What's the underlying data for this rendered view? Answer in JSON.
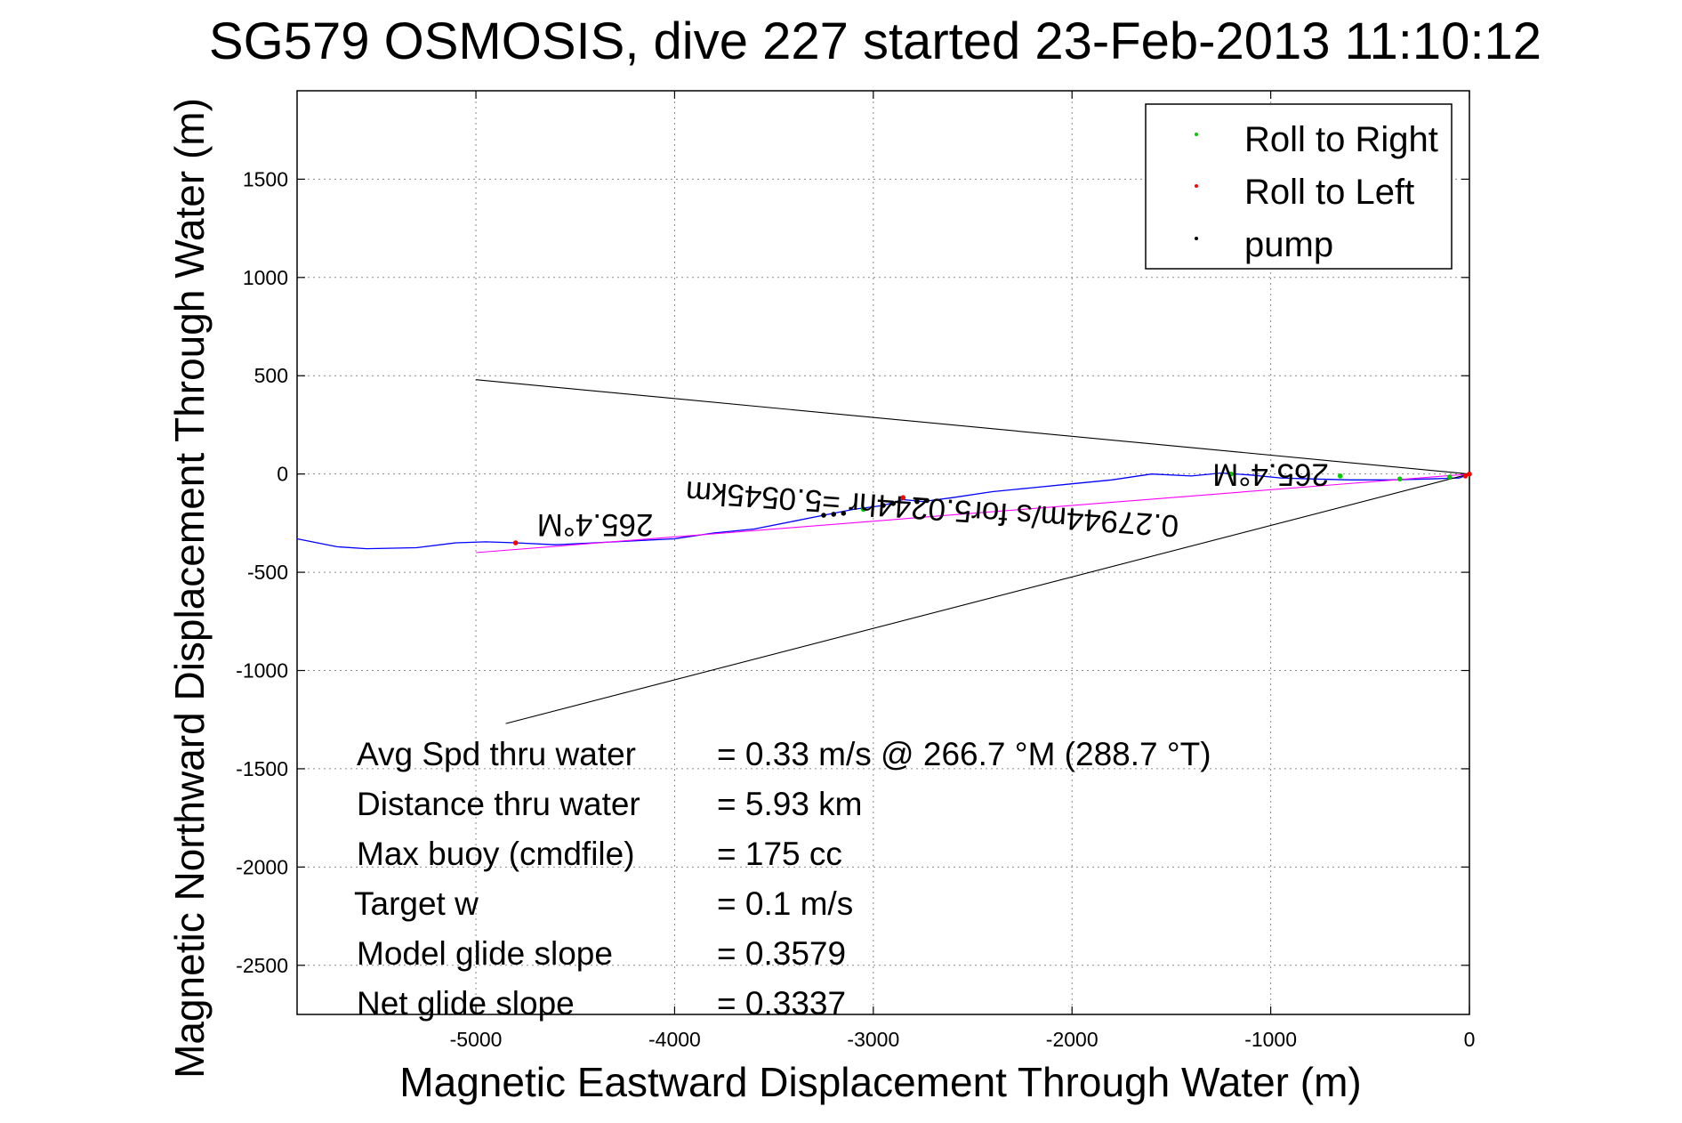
{
  "chart_data": {
    "type": "line",
    "title": "SG579 OSMOSIS, dive 227 started 23-Feb-2013 11:10:12",
    "xlabel": "Magnetic Eastward Displacement Through Water (m)",
    "ylabel": "Magnetic Northward Displacement Through Water (m)",
    "xlim": [
      -5900,
      0
    ],
    "ylim": [
      -2750,
      1950
    ],
    "xticks": [
      -5000,
      -4000,
      -3000,
      -2000,
      -1000,
      0
    ],
    "yticks": [
      -2500,
      -2000,
      -1500,
      -1000,
      -500,
      0,
      500,
      1000,
      1500
    ],
    "grid": true,
    "legend_position": "top-right",
    "legend": [
      {
        "label": "Roll to Right",
        "color": "#00cc00"
      },
      {
        "label": "Roll to Left",
        "color": "#ff0000"
      },
      {
        "label": "pump",
        "color": "#000000"
      }
    ],
    "series": [
      {
        "style": "track",
        "color": "#0000ff",
        "x": [
          -5900,
          -5700,
          -5550,
          -5300,
          -5100,
          -4950,
          -4800,
          -4600,
          -4400,
          -4200,
          -4000,
          -3800,
          -3600,
          -3400,
          -3250,
          -3100,
          -2950,
          -2850,
          -2750,
          -2600,
          -2400,
          -2200,
          -2000,
          -1800,
          -1600,
          -1400,
          -1250,
          -1100,
          -950,
          -800,
          -600,
          -400,
          -200,
          -50,
          0
        ],
        "y": [
          -330,
          -370,
          -380,
          -375,
          -350,
          -345,
          -350,
          -360,
          -350,
          -340,
          -330,
          -300,
          -280,
          -240,
          -210,
          -180,
          -160,
          -130,
          -140,
          -120,
          -90,
          -70,
          -50,
          -30,
          0,
          -10,
          5,
          -5,
          -20,
          -25,
          -30,
          -30,
          -25,
          -20,
          0
        ]
      },
      {
        "style": "fit",
        "color": "#ff00ff",
        "x": [
          -5000,
          0
        ],
        "y": [
          -400,
          0
        ]
      },
      {
        "style": "cone-upper",
        "color": "#000000",
        "x": [
          -5000,
          0
        ],
        "y": [
          480,
          0
        ]
      },
      {
        "style": "cone-lower",
        "color": "#000000",
        "x": [
          -4850,
          0
        ],
        "y": [
          -1270,
          0
        ]
      }
    ],
    "markers": {
      "roll_right": {
        "color": "#00cc00",
        "x": [
          -3050,
          -2900,
          -1200,
          -650,
          -350,
          -100
        ],
        "y": [
          -180,
          -150,
          0,
          -10,
          -25,
          -15
        ]
      },
      "roll_left": {
        "color": "#ff0000",
        "x": [
          -4800,
          -2850,
          0,
          -20
        ],
        "y": [
          -350,
          -120,
          0,
          -10
        ]
      },
      "pump": {
        "color": "#000000",
        "x": [
          -3250,
          -3200,
          -3150,
          -2950,
          -2900,
          -2780,
          -2730
        ],
        "y": [
          -210,
          -205,
          -200,
          -160,
          -150,
          -140,
          -135
        ]
      }
    },
    "annotations": {
      "heading_left": "265.4°M",
      "heading_right": "265.4°M",
      "current": "0.27944m/s for5.0244hr =5.0545km"
    },
    "stats": [
      {
        "label": "Avg Spd thru water",
        "value": "=  0.33 m/s @ 266.7 °M (288.7 °T)"
      },
      {
        "label": "Distance thru water",
        "value": "=  5.93 km"
      },
      {
        "label": "Max buoy (cmdfile)",
        "value": "= 175 cc"
      },
      {
        "label": "Target w",
        "value": "= 0.1 m/s"
      },
      {
        "label": "Model glide slope",
        "value": "= 0.3579"
      },
      {
        "label": "Net glide slope",
        "value": "= 0.3337"
      }
    ]
  }
}
